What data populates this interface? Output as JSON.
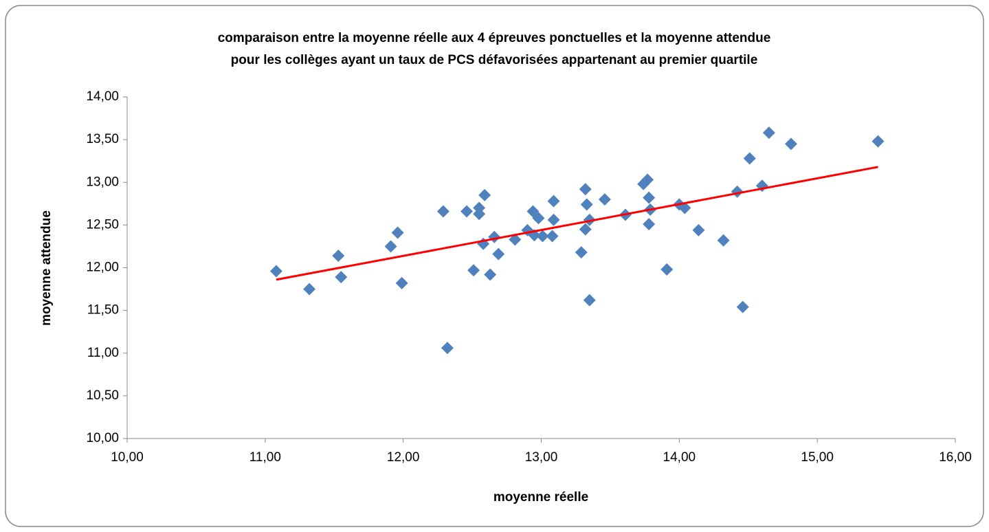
{
  "chart_data": {
    "type": "scatter",
    "title": [
      "comparaison  entre la moyenne réelle aux 4 épreuves ponctuelles  et la moyenne attendue",
      "pour les collèges ayant  un taux  de PCS défavorisées  appartenant  au premier quartile"
    ],
    "x_label": "moyenne réelle",
    "y_label": "moyenne attendue",
    "xlim": [
      10,
      16
    ],
    "ylim": [
      10,
      14
    ],
    "xticks": [
      {
        "value": 10,
        "label": "10,00"
      },
      {
        "value": 11,
        "label": "11,00"
      },
      {
        "value": 12,
        "label": "12,00"
      },
      {
        "value": 13,
        "label": "13,00"
      },
      {
        "value": 14,
        "label": "14,00"
      },
      {
        "value": 15,
        "label": "15,00"
      },
      {
        "value": 16,
        "label": "16,00"
      }
    ],
    "yticks": [
      {
        "value": 10,
        "label": "10,00"
      },
      {
        "value": 10.5,
        "label": "10,50"
      },
      {
        "value": 11,
        "label": "11,00"
      },
      {
        "value": 11.5,
        "label": "11,50"
      },
      {
        "value": 12,
        "label": "12,00"
      },
      {
        "value": 12.5,
        "label": "12,50"
      },
      {
        "value": 13,
        "label": "13,00"
      },
      {
        "value": 13.5,
        "label": "13,50"
      },
      {
        "value": 14,
        "label": "14,00"
      }
    ],
    "series": [
      {
        "color": "#4f81bd",
        "x": [
          11.08,
          11.32,
          11.53,
          11.55,
          11.91,
          11.96,
          11.99,
          12.29,
          12.32,
          12.46,
          12.51,
          12.55,
          12.55,
          12.59,
          12.58,
          12.63,
          12.66,
          12.69,
          12.81,
          12.9,
          12.94,
          12.95,
          12.98,
          13.01,
          13.08,
          13.09,
          13.09,
          13.29,
          13.32,
          13.32,
          13.33,
          13.35,
          13.35,
          13.46,
          13.61,
          13.74,
          13.77,
          13.78,
          13.78,
          13.79,
          13.91,
          14.0,
          14.04,
          14.14,
          14.32,
          14.42,
          14.46,
          14.51,
          14.6,
          14.65,
          14.81,
          15.44
        ],
        "values": [
          11.96,
          11.75,
          12.14,
          11.89,
          12.25,
          12.41,
          11.82,
          12.66,
          11.06,
          12.66,
          11.97,
          12.7,
          12.63,
          12.85,
          12.28,
          11.92,
          12.36,
          12.16,
          12.33,
          12.44,
          12.66,
          12.38,
          12.58,
          12.37,
          12.37,
          12.56,
          12.78,
          12.18,
          12.45,
          12.92,
          12.74,
          12.56,
          11.62,
          12.8,
          12.62,
          12.98,
          13.03,
          12.82,
          12.51,
          12.68,
          11.98,
          12.74,
          12.7,
          12.44,
          12.32,
          12.89,
          11.54,
          13.28,
          12.96,
          13.58,
          13.45,
          13.48
        ]
      }
    ],
    "trendline": {
      "color": "#ff0000",
      "x": [
        11.08,
        15.44
      ],
      "values": [
        11.86,
        13.18
      ]
    }
  }
}
